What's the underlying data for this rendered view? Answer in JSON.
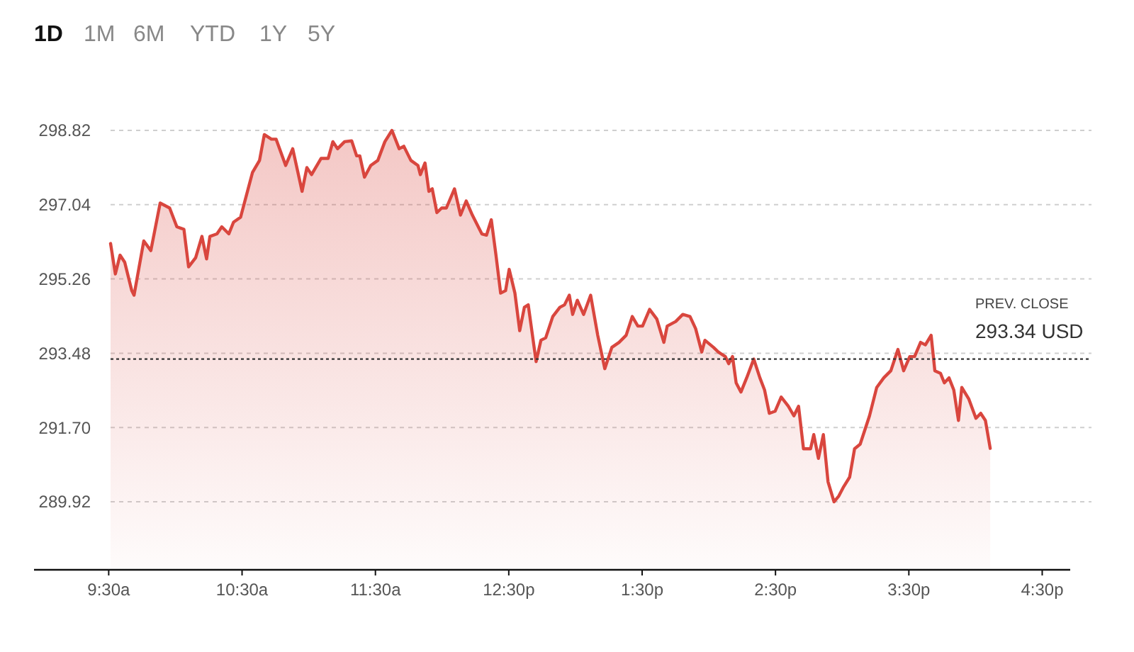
{
  "chart_data": {
    "type": "area",
    "annotations": [
      "1D",
      "1M",
      "6M",
      "YTD",
      "1Y",
      "5Y"
    ],
    "x": [
      9.514,
      9.55,
      9.585,
      9.62,
      9.673,
      9.69,
      9.763,
      9.816,
      9.886,
      9.957,
      10.011,
      10.064,
      10.099,
      10.152,
      10.199,
      10.234,
      10.259,
      10.312,
      10.348,
      10.401,
      10.436,
      10.489,
      10.578,
      10.631,
      10.667,
      10.72,
      10.755,
      10.827,
      10.88,
      10.95,
      10.986,
      11.021,
      11.093,
      11.146,
      11.181,
      11.216,
      11.269,
      11.322,
      11.359,
      11.383,
      11.418,
      11.465,
      11.518,
      11.571,
      11.624,
      11.678,
      11.713,
      11.766,
      11.819,
      11.837,
      11.872,
      11.901,
      11.926,
      11.961,
      11.997,
      12.032,
      12.093,
      12.138,
      12.181,
      12.227,
      12.298,
      12.333,
      12.369,
      12.404,
      12.439,
      12.476,
      12.503,
      12.546,
      12.582,
      12.617,
      12.646,
      12.705,
      12.741,
      12.777,
      12.83,
      12.883,
      12.918,
      12.954,
      12.979,
      13.014,
      13.061,
      13.114,
      13.167,
      13.22,
      13.273,
      13.327,
      13.38,
      13.426,
      13.468,
      13.503,
      13.556,
      13.61,
      13.663,
      13.688,
      13.752,
      13.805,
      13.859,
      13.901,
      13.947,
      13.971,
      14.035,
      14.071,
      14.124,
      14.149,
      14.178,
      14.205,
      14.241,
      14.284,
      14.337,
      14.383,
      14.418,
      14.454,
      14.497,
      14.543,
      14.596,
      14.638,
      14.673,
      14.71,
      14.763,
      14.787,
      14.822,
      14.859,
      14.894,
      14.939,
      14.975,
      15.011,
      15.056,
      15.093,
      15.135,
      15.205,
      15.259,
      15.312,
      15.365,
      15.418,
      15.461,
      15.507,
      15.543,
      15.588,
      15.624,
      15.667,
      15.695,
      15.737,
      15.766,
      15.801,
      15.837,
      15.872,
      15.897,
      15.95,
      16.003,
      16.039,
      16.074,
      16.11
    ],
    "series": [
      {
        "color": "#d9463e",
        "values": [
          296.11,
          295.38,
          295.83,
          295.66,
          294.98,
          294.87,
          296.17,
          295.94,
          297.08,
          296.96,
          296.51,
          296.45,
          295.55,
          295.77,
          296.28,
          295.74,
          296.28,
          296.34,
          296.51,
          296.34,
          296.62,
          296.74,
          297.81,
          298.1,
          298.72,
          298.61,
          298.61,
          297.98,
          298.38,
          297.36,
          297.93,
          297.76,
          298.15,
          298.15,
          298.55,
          298.38,
          298.55,
          298.57,
          298.21,
          298.21,
          297.7,
          297.98,
          298.1,
          298.55,
          298.82,
          298.38,
          298.44,
          298.1,
          297.98,
          297.76,
          298.04,
          297.36,
          297.42,
          296.85,
          296.96,
          296.96,
          297.42,
          296.79,
          297.13,
          296.79,
          296.34,
          296.31,
          296.68,
          295.83,
          294.92,
          294.98,
          295.49,
          294.92,
          294.02,
          294.58,
          294.64,
          293.28,
          293.79,
          293.85,
          294.36,
          294.58,
          294.64,
          294.87,
          294.41,
          294.75,
          294.41,
          294.87,
          293.91,
          293.11,
          293.62,
          293.74,
          293.91,
          294.36,
          294.13,
          294.13,
          294.53,
          294.3,
          293.74,
          294.13,
          294.24,
          294.41,
          294.36,
          294.07,
          293.51,
          293.79,
          293.62,
          293.51,
          293.4,
          293.23,
          293.4,
          292.77,
          292.55,
          292.89,
          293.34,
          292.89,
          292.6,
          292.04,
          292.09,
          292.43,
          292.21,
          291.98,
          292.21,
          291.19,
          291.19,
          291.53,
          290.96,
          291.53,
          290.4,
          289.92,
          290.06,
          290.28,
          290.51,
          291.19,
          291.3,
          291.98,
          292.66,
          292.89,
          293.06,
          293.57,
          293.06,
          293.4,
          293.4,
          293.74,
          293.68,
          293.91,
          293.06,
          293.0,
          292.77,
          292.89,
          292.6,
          291.87,
          292.66,
          292.38,
          291.92,
          292.04,
          291.87,
          291.2
        ]
      }
    ],
    "xlim": [
      8.94,
      16.71
    ],
    "xticks": [
      {
        "value": 9.5,
        "label": "9:30a"
      },
      {
        "value": 10.5,
        "label": "10:30a"
      },
      {
        "value": 11.5,
        "label": "11:30a"
      },
      {
        "value": 12.5,
        "label": "12:30p"
      },
      {
        "value": 13.5,
        "label": "1:30p"
      },
      {
        "value": 14.5,
        "label": "2:30p"
      },
      {
        "value": 15.5,
        "label": "3:30p"
      },
      {
        "value": 16.5,
        "label": "4:30p"
      }
    ],
    "ylim": [
      288.29,
      298.82
    ],
    "yticks": [
      289.92,
      {
        "value": 291.7,
        "label": "291.70"
      },
      293.48,
      295.26,
      297.04,
      298.82
    ],
    "grid": "y",
    "ref_lines": [
      {
        "axis": "y",
        "value": 293.34,
        "label": "PREV. CLOSE\n293.34 USD",
        "color": "#333333",
        "line_style": "dotted"
      }
    ]
  }
}
